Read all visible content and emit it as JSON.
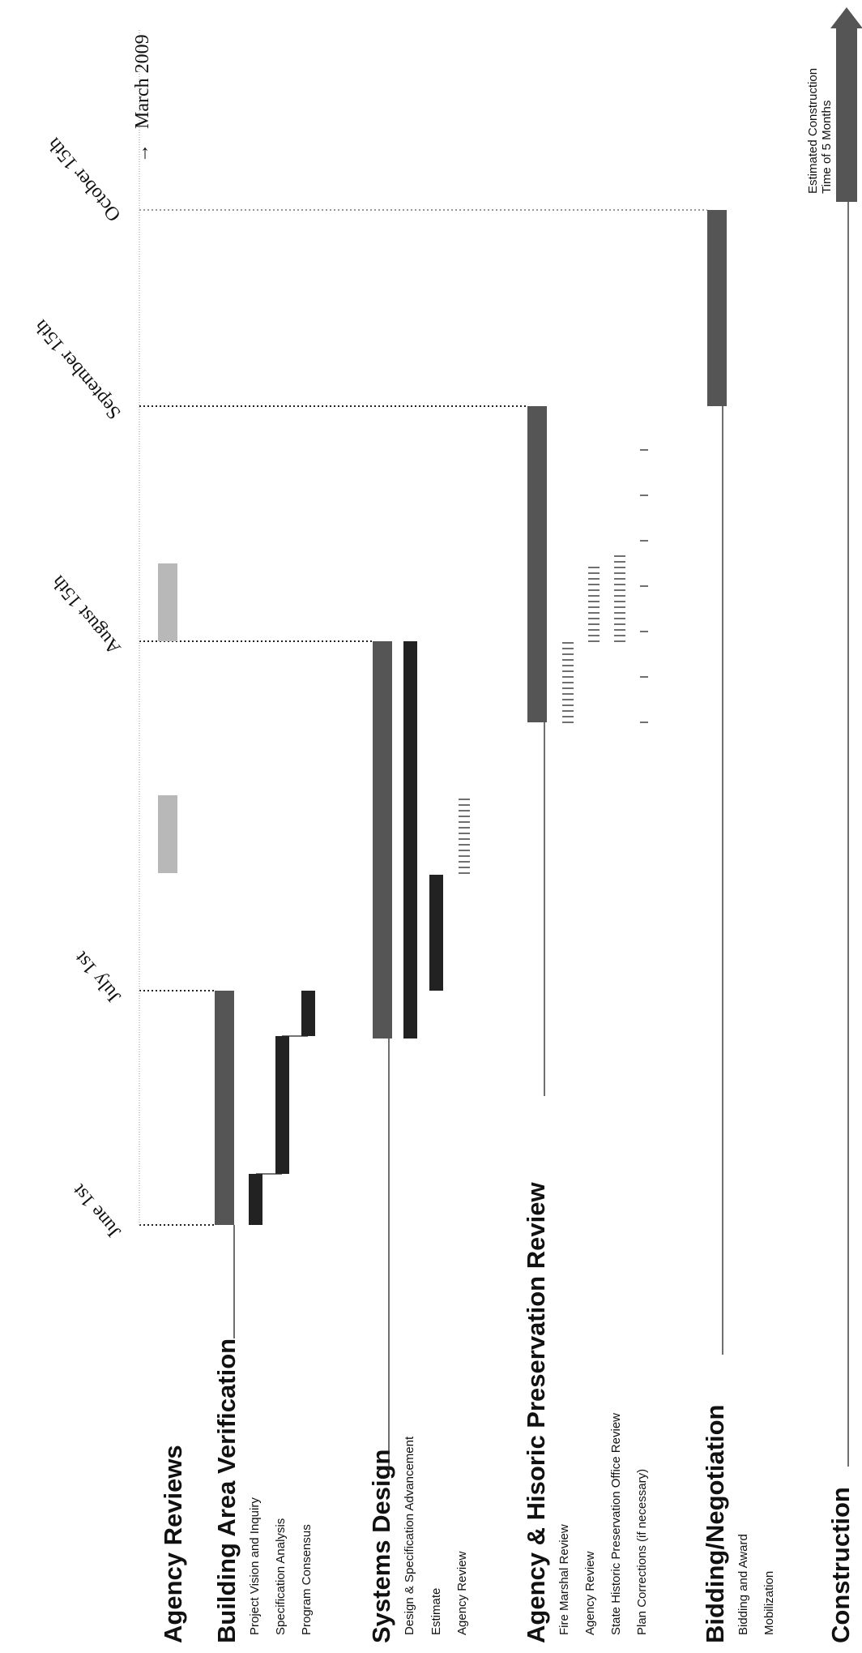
{
  "chart_data": {
    "type": "gantt",
    "title": "Agency Reviews",
    "milestones": [
      {
        "label": "June 1st",
        "date": "June 1st"
      },
      {
        "label": "July 1st",
        "date": "July 1st"
      },
      {
        "label": "August 15th",
        "date": "August 15th"
      },
      {
        "label": "September 15th",
        "date": "September 15th"
      },
      {
        "label": "October 15th",
        "date": "October 15th"
      },
      {
        "label": "March 2009",
        "date": "March 2009"
      }
    ],
    "phases": [
      {
        "name": "Building Area Verification",
        "start": "June 1st",
        "end": "July 1st",
        "tasks": [
          {
            "name": "Project Vision and Inquiry",
            "start_day": 0,
            "end_day": 6
          },
          {
            "name": "Specification Analysis",
            "start_day": 6,
            "end_day": 24
          },
          {
            "name": "Program Consensus",
            "start_day": 24,
            "end_day": 30
          }
        ]
      },
      {
        "name": "Systems Design",
        "start": "June 24th",
        "end": "August 15th",
        "tasks": [
          {
            "name": "Design & Specification Advancement",
            "start_day": 23,
            "end_day": 75
          },
          {
            "name": "Estimate",
            "start_day": 30,
            "end_day": 45
          },
          {
            "name": "Agency Review",
            "start_day": 45,
            "end_day": 55
          }
        ]
      },
      {
        "name": "Agency & Hisoric Preservation Review",
        "start": "August 5th",
        "end": "September 15th",
        "tasks": [
          {
            "name": "Fire Marshal Review",
            "start_day": 65,
            "end_day": 75
          },
          {
            "name": "Agency Review",
            "start_day": 75,
            "end_day": 85
          },
          {
            "name": "State Historic Preservation Office Review",
            "start_day": 75,
            "end_day": 86
          },
          {
            "name": "Plan Corrections (if necessary)",
            "start_day": 65,
            "end_day": 106
          }
        ]
      },
      {
        "name": "Bidding/Negotiation",
        "start": "September 15th",
        "end": "October 15th",
        "tasks": [
          {
            "name": "Bidding and Award"
          },
          {
            "name": "Mobilization"
          }
        ]
      },
      {
        "name": "Construction",
        "start": "October 15th",
        "end": "March 2009",
        "tasks": []
      }
    ],
    "agency_review_markers": [
      {
        "start_day": 45,
        "end_day": 55
      },
      {
        "start_day": 75,
        "end_day": 85
      }
    ],
    "construction_note": [
      "Estimated Construction",
      "Time of 5 Months"
    ],
    "colors": {
      "phase_bar": "#555555",
      "task_bar": "#222222",
      "review_marker": "#b8b8b8",
      "hatch": "#333333",
      "guide": "#999999"
    }
  }
}
